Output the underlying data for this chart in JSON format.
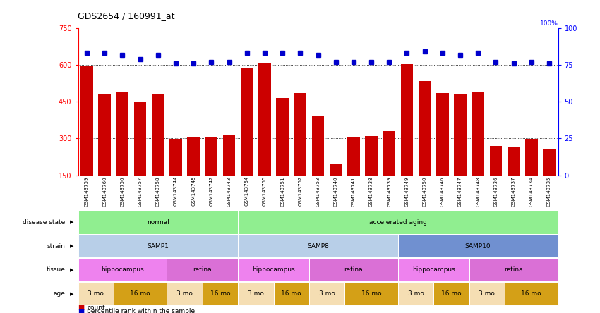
{
  "title": "GDS2654 / 160991_at",
  "samples": [
    "GSM143759",
    "GSM143760",
    "GSM143756",
    "GSM143757",
    "GSM143758",
    "GSM143744",
    "GSM143745",
    "GSM143742",
    "GSM143743",
    "GSM143754",
    "GSM143755",
    "GSM143751",
    "GSM143752",
    "GSM143753",
    "GSM143740",
    "GSM143741",
    "GSM143738",
    "GSM143739",
    "GSM143749",
    "GSM143750",
    "GSM143746",
    "GSM143747",
    "GSM143748",
    "GSM143736",
    "GSM143737",
    "GSM143734",
    "GSM143735"
  ],
  "counts": [
    596,
    483,
    492,
    447,
    481,
    298,
    303,
    307,
    315,
    588,
    607,
    465,
    486,
    393,
    198,
    304,
    310,
    330,
    604,
    534,
    486,
    480,
    492,
    270,
    265,
    298,
    258
  ],
  "percentile": [
    83,
    83,
    82,
    79,
    82,
    76,
    76,
    77,
    77,
    83,
    83,
    83,
    83,
    82,
    77,
    77,
    77,
    77,
    83,
    84,
    83,
    82,
    83,
    77,
    76,
    77,
    76
  ],
  "bar_color": "#cc0000",
  "dot_color": "#0000cc",
  "ylim_left": [
    150,
    750
  ],
  "yticks_left": [
    150,
    300,
    450,
    600,
    750
  ],
  "ylim_right": [
    0,
    100
  ],
  "yticks_right": [
    0,
    25,
    50,
    75,
    100
  ],
  "color_normal": "#90ee90",
  "color_accel_aging": "#90ee90",
  "color_samp1": "#b8cfe8",
  "color_samp8": "#b8cfe8",
  "color_samp10": "#7090d0",
  "color_hippo": "#ee82ee",
  "color_retina": "#da70d6",
  "color_age_3mo": "#f5deb3",
  "color_age_16mo": "#d4a017",
  "disease_segs": [
    {
      "start": 0,
      "end": 9,
      "color": "#90ee90",
      "label": "normal"
    },
    {
      "start": 9,
      "end": 27,
      "color": "#90ee90",
      "label": "accelerated aging"
    }
  ],
  "strain_segs": [
    {
      "start": 0,
      "end": 9,
      "color": "#b8cfe8",
      "label": "SAMP1"
    },
    {
      "start": 9,
      "end": 18,
      "color": "#b8cfe8",
      "label": "SAMP8"
    },
    {
      "start": 18,
      "end": 27,
      "color": "#7090d0",
      "label": "SAMP10"
    }
  ],
  "tissue_segs": [
    {
      "start": 0,
      "end": 5,
      "color": "#ee82ee",
      "label": "hippocampus"
    },
    {
      "start": 5,
      "end": 9,
      "color": "#da70d6",
      "label": "retina"
    },
    {
      "start": 9,
      "end": 13,
      "color": "#ee82ee",
      "label": "hippocampus"
    },
    {
      "start": 13,
      "end": 18,
      "color": "#da70d6",
      "label": "retina"
    },
    {
      "start": 18,
      "end": 22,
      "color": "#ee82ee",
      "label": "hippocampus"
    },
    {
      "start": 22,
      "end": 27,
      "color": "#da70d6",
      "label": "retina"
    }
  ],
  "age_segs": [
    {
      "start": 0,
      "end": 2,
      "color": "#f5deb3",
      "label": "3 mo"
    },
    {
      "start": 2,
      "end": 5,
      "color": "#d4a017",
      "label": "16 mo"
    },
    {
      "start": 5,
      "end": 7,
      "color": "#f5deb3",
      "label": "3 mo"
    },
    {
      "start": 7,
      "end": 9,
      "color": "#d4a017",
      "label": "16 mo"
    },
    {
      "start": 9,
      "end": 11,
      "color": "#f5deb3",
      "label": "3 mo"
    },
    {
      "start": 11,
      "end": 13,
      "color": "#d4a017",
      "label": "16 mo"
    },
    {
      "start": 13,
      "end": 15,
      "color": "#f5deb3",
      "label": "3 mo"
    },
    {
      "start": 15,
      "end": 18,
      "color": "#d4a017",
      "label": "16 mo"
    },
    {
      "start": 18,
      "end": 20,
      "color": "#f5deb3",
      "label": "3 mo"
    },
    {
      "start": 20,
      "end": 22,
      "color": "#d4a017",
      "label": "16 mo"
    },
    {
      "start": 22,
      "end": 24,
      "color": "#f5deb3",
      "label": "3 mo"
    },
    {
      "start": 24,
      "end": 27,
      "color": "#d4a017",
      "label": "16 mo"
    }
  ],
  "row_labels": [
    "disease state",
    "strain",
    "tissue",
    "age"
  ],
  "n_samples": 27
}
